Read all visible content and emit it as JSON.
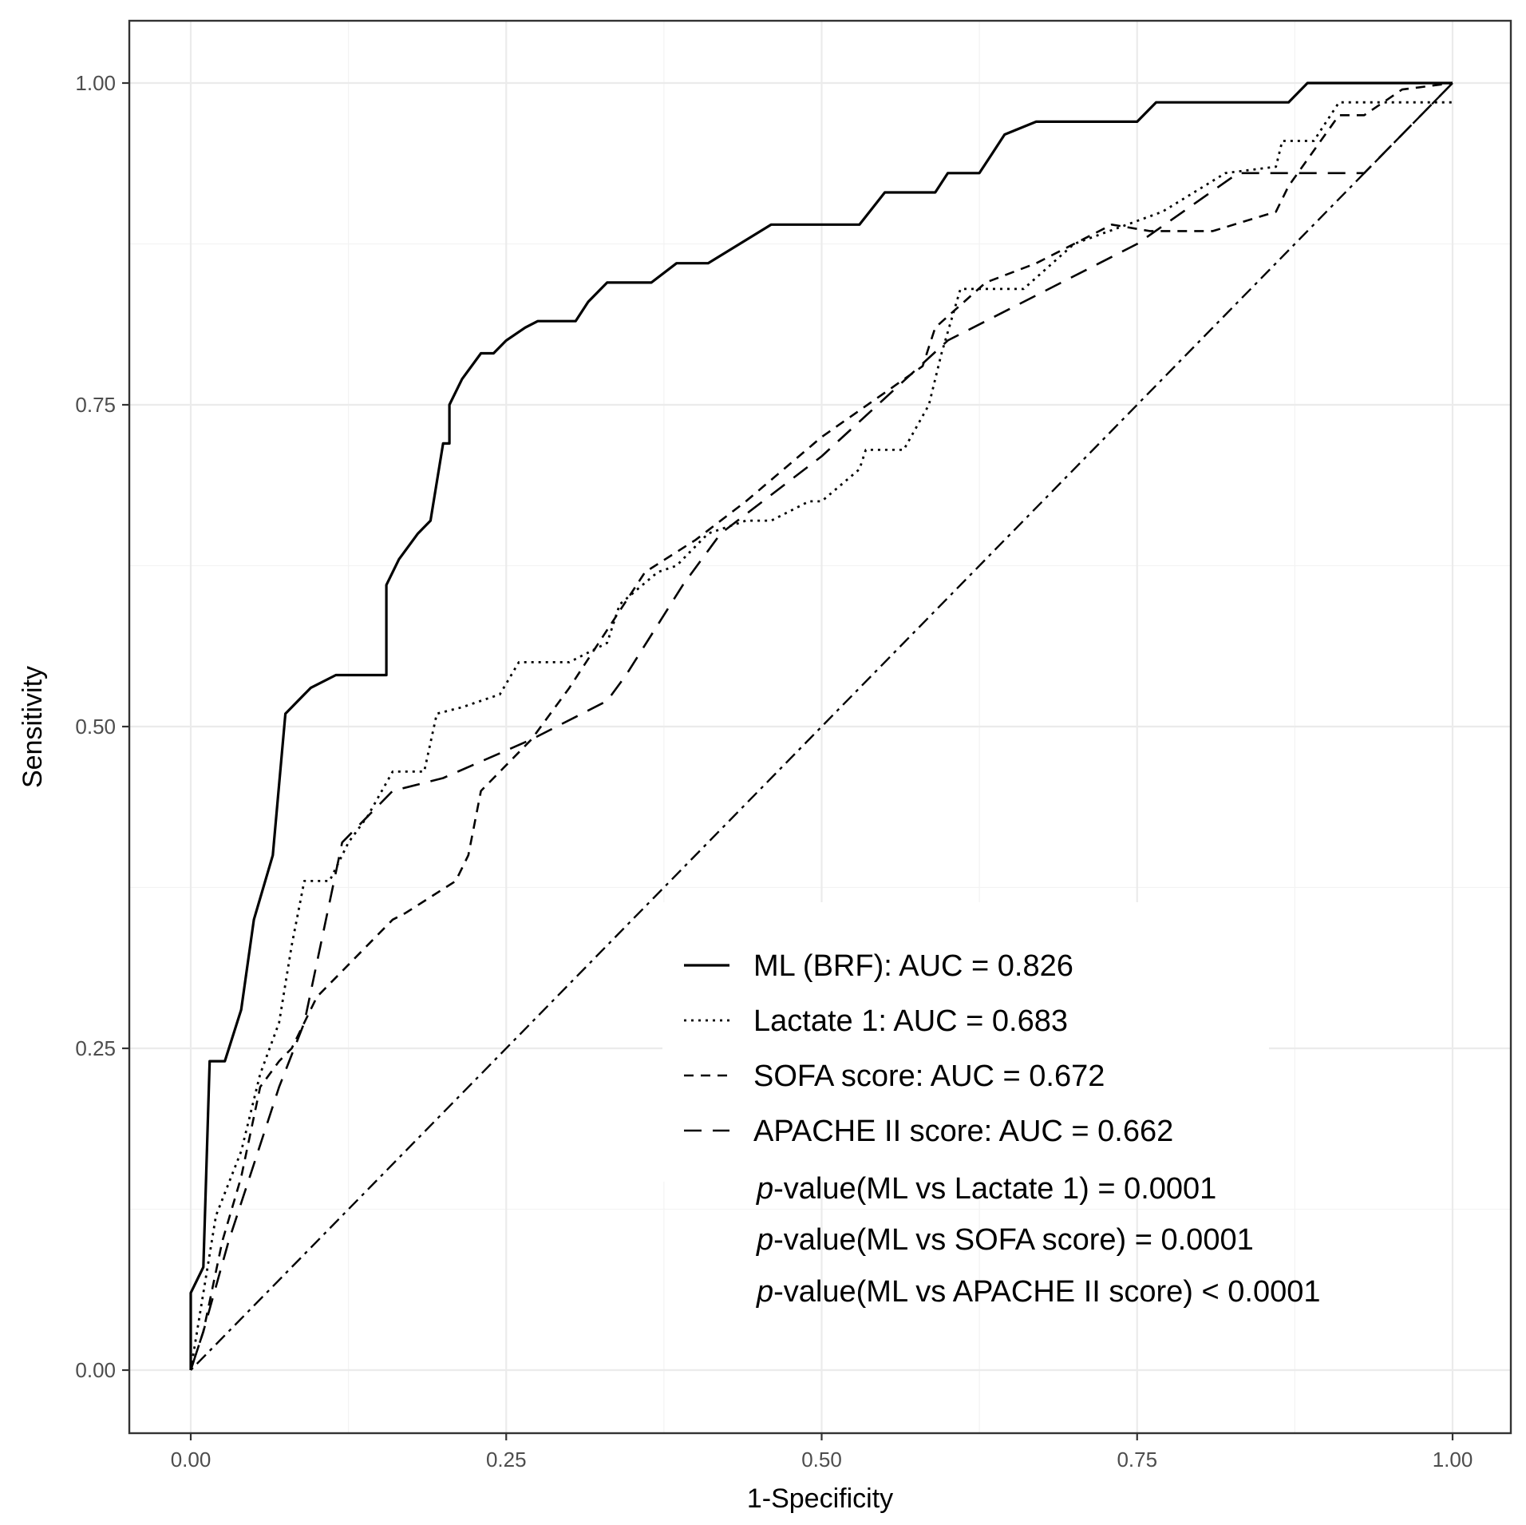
{
  "chart_data": {
    "type": "line",
    "title": "",
    "xlabel": "1-Specificity",
    "ylabel": "Sensitivity",
    "xlim": [
      0,
      1
    ],
    "ylim": [
      0,
      1
    ],
    "x_ticks": [
      0,
      0.25,
      0.5,
      0.75,
      1
    ],
    "y_ticks": [
      0,
      0.25,
      0.5,
      0.75,
      1
    ],
    "x_tick_labels": [
      "0.00",
      "0.25",
      "0.50",
      "0.75",
      "1.00"
    ],
    "y_tick_labels": [
      "0.00",
      "0.25",
      "0.50",
      "0.75",
      "1.00"
    ],
    "grid": true,
    "legend_position": "bottom-right",
    "series": [
      {
        "name": "ML (BRF): AUC = 0.826",
        "style": "solid",
        "points": [
          [
            0,
            0
          ],
          [
            0,
            0.06
          ],
          [
            0.01,
            0.08
          ],
          [
            0.015,
            0.24
          ],
          [
            0.027,
            0.24
          ],
          [
            0.04,
            0.28
          ],
          [
            0.05,
            0.35
          ],
          [
            0.065,
            0.4
          ],
          [
            0.075,
            0.51
          ],
          [
            0.095,
            0.53
          ],
          [
            0.115,
            0.54
          ],
          [
            0.155,
            0.54
          ],
          [
            0.155,
            0.61
          ],
          [
            0.165,
            0.63
          ],
          [
            0.18,
            0.65
          ],
          [
            0.19,
            0.66
          ],
          [
            0.2,
            0.72
          ],
          [
            0.205,
            0.72
          ],
          [
            0.205,
            0.75
          ],
          [
            0.215,
            0.77
          ],
          [
            0.23,
            0.79
          ],
          [
            0.24,
            0.79
          ],
          [
            0.25,
            0.8
          ],
          [
            0.265,
            0.81
          ],
          [
            0.275,
            0.815
          ],
          [
            0.305,
            0.815
          ],
          [
            0.315,
            0.83
          ],
          [
            0.33,
            0.845
          ],
          [
            0.365,
            0.845
          ],
          [
            0.385,
            0.86
          ],
          [
            0.41,
            0.86
          ],
          [
            0.46,
            0.89
          ],
          [
            0.53,
            0.89
          ],
          [
            0.55,
            0.915
          ],
          [
            0.59,
            0.915
          ],
          [
            0.6,
            0.93
          ],
          [
            0.625,
            0.93
          ],
          [
            0.635,
            0.945
          ],
          [
            0.645,
            0.96
          ],
          [
            0.67,
            0.97
          ],
          [
            0.75,
            0.97
          ],
          [
            0.765,
            0.985
          ],
          [
            0.87,
            0.985
          ],
          [
            0.885,
            1
          ],
          [
            1,
            1
          ]
        ]
      },
      {
        "name": "Lactate 1: AUC = 0.683",
        "style": "dotted",
        "points": [
          [
            0,
            0
          ],
          [
            0.01,
            0.06
          ],
          [
            0.02,
            0.12
          ],
          [
            0.04,
            0.17
          ],
          [
            0.055,
            0.23
          ],
          [
            0.07,
            0.27
          ],
          [
            0.08,
            0.33
          ],
          [
            0.09,
            0.38
          ],
          [
            0.11,
            0.38
          ],
          [
            0.125,
            0.41
          ],
          [
            0.14,
            0.43
          ],
          [
            0.16,
            0.465
          ],
          [
            0.185,
            0.465
          ],
          [
            0.195,
            0.51
          ],
          [
            0.215,
            0.515
          ],
          [
            0.245,
            0.525
          ],
          [
            0.26,
            0.55
          ],
          [
            0.3,
            0.55
          ],
          [
            0.33,
            0.565
          ],
          [
            0.34,
            0.595
          ],
          [
            0.37,
            0.62
          ],
          [
            0.385,
            0.625
          ],
          [
            0.41,
            0.65
          ],
          [
            0.44,
            0.66
          ],
          [
            0.46,
            0.66
          ],
          [
            0.49,
            0.675
          ],
          [
            0.5,
            0.675
          ],
          [
            0.53,
            0.7
          ],
          [
            0.535,
            0.715
          ],
          [
            0.565,
            0.715
          ],
          [
            0.585,
            0.75
          ],
          [
            0.595,
            0.79
          ],
          [
            0.61,
            0.84
          ],
          [
            0.66,
            0.84
          ],
          [
            0.7,
            0.875
          ],
          [
            0.77,
            0.9
          ],
          [
            0.82,
            0.93
          ],
          [
            0.86,
            0.935
          ],
          [
            0.865,
            0.955
          ],
          [
            0.89,
            0.955
          ],
          [
            0.91,
            0.985
          ],
          [
            0.95,
            0.985
          ],
          [
            1,
            0.985
          ]
        ]
      },
      {
        "name": "SOFA score: AUC = 0.672",
        "style": "dashed",
        "points": [
          [
            0,
            0
          ],
          [
            0.01,
            0.03
          ],
          [
            0.025,
            0.1
          ],
          [
            0.04,
            0.15
          ],
          [
            0.055,
            0.22
          ],
          [
            0.07,
            0.24
          ],
          [
            0.08,
            0.25
          ],
          [
            0.1,
            0.29
          ],
          [
            0.12,
            0.31
          ],
          [
            0.16,
            0.35
          ],
          [
            0.17,
            0.355
          ],
          [
            0.21,
            0.38
          ],
          [
            0.22,
            0.4
          ],
          [
            0.23,
            0.45
          ],
          [
            0.24,
            0.46
          ],
          [
            0.27,
            0.49
          ],
          [
            0.3,
            0.53
          ],
          [
            0.33,
            0.575
          ],
          [
            0.36,
            0.62
          ],
          [
            0.4,
            0.645
          ],
          [
            0.44,
            0.675
          ],
          [
            0.5,
            0.725
          ],
          [
            0.58,
            0.78
          ],
          [
            0.59,
            0.81
          ],
          [
            0.63,
            0.845
          ],
          [
            0.67,
            0.86
          ],
          [
            0.73,
            0.89
          ],
          [
            0.76,
            0.885
          ],
          [
            0.81,
            0.885
          ],
          [
            0.86,
            0.9
          ],
          [
            0.87,
            0.92
          ],
          [
            0.91,
            0.975
          ],
          [
            0.93,
            0.975
          ],
          [
            0.96,
            0.995
          ],
          [
            1,
            1
          ]
        ]
      },
      {
        "name": "APACHE II score: AUC = 0.662",
        "style": "longdash",
        "points": [
          [
            0,
            0
          ],
          [
            0.01,
            0.03
          ],
          [
            0.03,
            0.1
          ],
          [
            0.05,
            0.16
          ],
          [
            0.07,
            0.22
          ],
          [
            0.09,
            0.27
          ],
          [
            0.12,
            0.41
          ],
          [
            0.16,
            0.45
          ],
          [
            0.2,
            0.46
          ],
          [
            0.27,
            0.49
          ],
          [
            0.33,
            0.52
          ],
          [
            0.345,
            0.54
          ],
          [
            0.39,
            0.61
          ],
          [
            0.42,
            0.65
          ],
          [
            0.5,
            0.71
          ],
          [
            0.6,
            0.8
          ],
          [
            0.75,
            0.875
          ],
          [
            0.83,
            0.93
          ],
          [
            0.86,
            0.93
          ],
          [
            0.93,
            0.93
          ],
          [
            1,
            1
          ]
        ]
      },
      {
        "name": "reference",
        "style": "dotdash",
        "points": [
          [
            0,
            0
          ],
          [
            1,
            1
          ]
        ]
      }
    ],
    "legend": {
      "entries": [
        "ML (BRF): AUC = 0.826",
        "Lactate 1: AUC = 0.683",
        "SOFA score: AUC = 0.672",
        "APACHE II score: AUC = 0.662"
      ],
      "pvalues": [
        {
          "prefix": "p",
          "text": "-value(ML vs Lactate 1) = 0.0001"
        },
        {
          "prefix": "p",
          "text": "-value(ML vs SOFA score) = 0.0001"
        },
        {
          "prefix": "p",
          "text": "-value(ML vs APACHE II score) < 0.0001"
        }
      ]
    }
  }
}
